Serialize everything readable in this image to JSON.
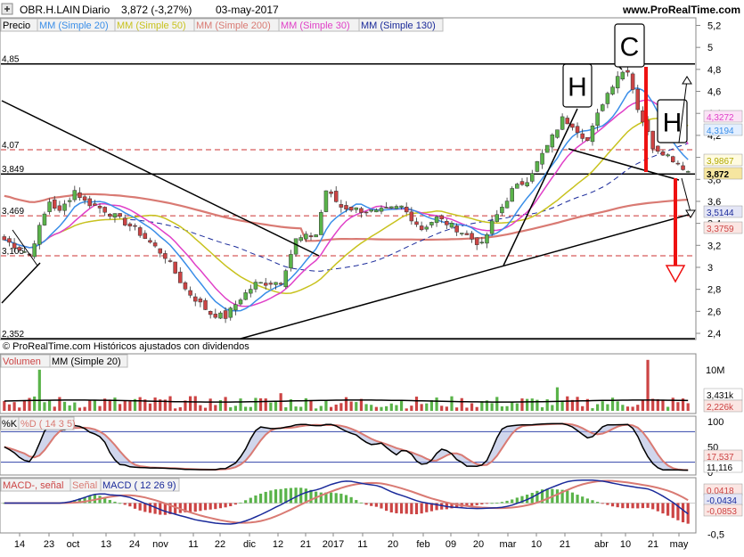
{
  "header": {
    "ticker": "OBR.H.LAIN",
    "period": "Diario",
    "last": "3,872 (-3,27%)",
    "date": "03-may-2017",
    "site": "www.ProRealTime.com"
  },
  "price_panel": {
    "legend": [
      "Precio",
      "MM (Simple 20)",
      "MM (Simple 50)",
      "MM (Simple 200)",
      "MM (Simple 30)",
      "MM (Simple 130)"
    ],
    "copyright": "© ProRealTime.com  Históricos ajustados con dividendos",
    "hline_labels": [
      "4,85",
      "4,07",
      "3,849",
      "3,469",
      "3,105",
      "2,352"
    ],
    "pattern_labels": {
      "head": "C",
      "left_shoulder": "H",
      "right_shoulder": "H"
    },
    "badges": [
      "4,3272",
      "4,3194",
      "3,9867",
      "3,872",
      "3,5144",
      "3,3759"
    ]
  },
  "volume_panel": {
    "legend": [
      "Volumen",
      "MM (Simple 20)"
    ],
    "badges": [
      "3,431k",
      "2,226k"
    ]
  },
  "stoch_panel": {
    "legend": [
      "%K",
      "%D ( 14 3 5)"
    ],
    "badges": [
      "17,537",
      "11,116"
    ]
  },
  "macd_panel": {
    "legend": [
      "MACD-, señal",
      "Señal",
      "MACD ( 12 26 9)"
    ],
    "badges": [
      "0,0418",
      "-0,0434",
      "-0,0853"
    ]
  },
  "colors": {
    "up": "#5ab34a",
    "down": "#cc4444",
    "mm20": "#3a8ee8",
    "mm50": "#c8c21e",
    "mm200": "#d97a73",
    "mm30": "#e040c8",
    "mm130": "#1a2a9a",
    "arrow": "#ee1111"
  },
  "chart_data": [
    {
      "type": "candlestick",
      "title": "OBR.H.LAIN Diario",
      "y_axis_ticks": [
        "5,2",
        "5",
        "4,8",
        "4,6",
        "4,4",
        "4,2",
        "4",
        "3,8",
        "3,6",
        "3,4",
        "3,2",
        "3",
        "2,8",
        "2,6",
        "2,4"
      ],
      "ylim": [
        2.3,
        5.25
      ],
      "x_axis_ticks": [
        "14",
        "23",
        "oct",
        "13",
        "24",
        "nov",
        "11",
        "22",
        "dic",
        "12",
        "21",
        "2017",
        "11",
        "20",
        "feb",
        "09",
        "20",
        "mar",
        "10",
        "21",
        "abr",
        "10",
        "21",
        "may"
      ],
      "horizontal_levels": [
        4.85,
        4.07,
        3.849,
        3.469,
        3.105,
        2.352
      ],
      "last_close": 3.872,
      "indicators": {
        "MM20": 4.3194,
        "MM30": 4.3272,
        "MM50": 3.9867,
        "MM130": 3.5144,
        "MM200": 3.3759
      },
      "price_path": [
        [
          0,
          3.25
        ],
        [
          5,
          3.12
        ],
        [
          9,
          3.6
        ],
        [
          11,
          3.5
        ],
        [
          14,
          3.7
        ],
        [
          16,
          3.6
        ],
        [
          20,
          3.52
        ],
        [
          26,
          3.35
        ],
        [
          32,
          3.1
        ],
        [
          36,
          2.8
        ],
        [
          41,
          2.58
        ],
        [
          44,
          2.55
        ],
        [
          47,
          2.72
        ],
        [
          50,
          2.85
        ],
        [
          55,
          2.87
        ],
        [
          58,
          3.25
        ],
        [
          62,
          3.3
        ],
        [
          64,
          3.7
        ],
        [
          67,
          3.55
        ],
        [
          71,
          3.52
        ],
        [
          74,
          3.5
        ],
        [
          79,
          3.55
        ],
        [
          83,
          3.35
        ],
        [
          86,
          3.45
        ],
        [
          90,
          3.35
        ],
        [
          95,
          3.2
        ],
        [
          97,
          3.4
        ],
        [
          101,
          3.7
        ],
        [
          104,
          3.8
        ],
        [
          106,
          3.95
        ],
        [
          108,
          4.1
        ],
        [
          111,
          4.35
        ],
        [
          113,
          4.3
        ],
        [
          116,
          4.15
        ],
        [
          119,
          4.5
        ],
        [
          122,
          4.75
        ],
        [
          124,
          4.8
        ],
        [
          126,
          4.45
        ],
        [
          129,
          4.1
        ],
        [
          131,
          4.05
        ],
        [
          134,
          3.95
        ],
        [
          136,
          3.872
        ]
      ]
    },
    {
      "type": "bar",
      "title": "Volumen",
      "y_axis_ticks": [
        "10M"
      ],
      "indicators": {
        "MM20_volume": "3,431k",
        "last_volume": "2,226k"
      }
    },
    {
      "type": "line",
      "title": "%K %D ( 14 3 5)",
      "y_axis_ticks": [
        "100",
        "50",
        "0"
      ],
      "ylim": [
        0,
        100
      ],
      "reference_levels": [
        80,
        20
      ],
      "indicators": {
        "%K": 11.116,
        "%D": 17.537
      }
    },
    {
      "type": "line",
      "title": "MACD ( 12 26 9)",
      "y_axis_ticks": [
        "0",
        "-0,5"
      ],
      "ylim": [
        -0.6,
        0.2
      ],
      "indicators": {
        "histogram": 0.0418,
        "signal": -0.0434,
        "macd": -0.0853
      }
    }
  ]
}
